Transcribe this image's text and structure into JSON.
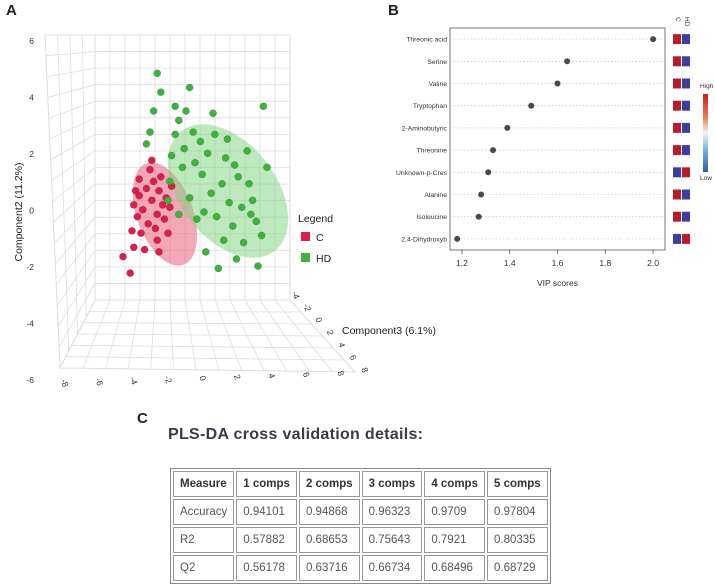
{
  "panels": {
    "a": "A",
    "b": "B",
    "c": "C"
  },
  "chart_data": [
    {
      "type": "scatter",
      "subtype": "3d-scatter",
      "axes": {
        "y_label": "Component2 (11.2%)",
        "depth_label": "Component3 (6.1%)",
        "y_ticks": [
          "6",
          "4",
          "2",
          "0",
          "-2",
          "-4",
          "-6"
        ],
        "x_ticks": [
          "-8",
          "-6",
          "-4",
          "-2",
          "0",
          "2",
          "4",
          "6",
          "8"
        ],
        "depth_ticks": [
          "-4",
          "-2",
          "0",
          "2",
          "4",
          "6",
          "8"
        ]
      },
      "legend": {
        "title": "Legend",
        "items": [
          {
            "label": "C",
            "color": "#dc1e4b"
          },
          {
            "label": "HD",
            "color": "#3cb43c"
          }
        ]
      },
      "series": [
        {
          "name": "C",
          "color": "#dc1e4b",
          "points": [
            [
              -4.6,
              0.7
            ],
            [
              -4.2,
              1.0
            ],
            [
              -3.8,
              1.3
            ],
            [
              -3.5,
              0.9
            ],
            [
              -4.9,
              0.3
            ],
            [
              -4.4,
              0.1
            ],
            [
              -3.9,
              0.5
            ],
            [
              -3.3,
              0.3
            ],
            [
              -4.7,
              -0.2
            ],
            [
              -4.1,
              -0.5
            ],
            [
              -3.6,
              -0.1
            ],
            [
              -3.1,
              0.6
            ],
            [
              -5.0,
              -0.8
            ],
            [
              -4.5,
              -0.9
            ],
            [
              -3.7,
              -0.7
            ],
            [
              -4.9,
              -1.5
            ],
            [
              -5.5,
              -1.9
            ],
            [
              -5.1,
              -2.6
            ],
            [
              -3.4,
              1.5
            ],
            [
              -4.0,
              1.8
            ],
            [
              -2.9,
              0.2
            ],
            [
              -3.6,
              -1.2
            ],
            [
              -4.3,
              -1.6
            ],
            [
              -3.2,
              -0.3
            ],
            [
              -2.8,
              1.1
            ],
            [
              -3.9,
              2.2
            ],
            [
              -4.6,
              1.4
            ],
            [
              -3.5,
              -1.7
            ],
            [
              -4.8,
              0.9
            ],
            [
              -3.0,
              -0.9
            ]
          ]
        },
        {
          "name": "HD",
          "color": "#3cb43c",
          "points": [
            [
              -3.4,
              5.1
            ],
            [
              -3.6,
              5.9
            ],
            [
              -2.6,
              4.5
            ],
            [
              -2.4,
              3.9
            ],
            [
              -2.0,
              4.3
            ],
            [
              -1.6,
              3.4
            ],
            [
              -1.2,
              3.0
            ],
            [
              -0.4,
              3.3
            ],
            [
              -2.1,
              2.7
            ],
            [
              -1.5,
              2.1
            ],
            [
              -0.8,
              2.5
            ],
            [
              0.2,
              2.3
            ],
            [
              0.7,
              2.0
            ],
            [
              -2.8,
              2.4
            ],
            [
              -2.2,
              1.9
            ],
            [
              -1.1,
              1.6
            ],
            [
              0.0,
              1.2
            ],
            [
              0.9,
              1.5
            ],
            [
              1.5,
              1.2
            ],
            [
              -1.8,
              0.6
            ],
            [
              -0.6,
              0.8
            ],
            [
              0.4,
              0.4
            ],
            [
              1.1,
              0.2
            ],
            [
              1.7,
              0.5
            ],
            [
              -1.4,
              -0.3
            ],
            [
              -0.3,
              -0.2
            ],
            [
              0.6,
              -0.6
            ],
            [
              1.9,
              -0.4
            ],
            [
              0.1,
              -1.2
            ],
            [
              1.2,
              -1.3
            ],
            [
              2.2,
              -1.0
            ],
            [
              -0.9,
              -1.7
            ],
            [
              0.8,
              -2.0
            ],
            [
              -2.4,
              -0.1
            ],
            [
              -2.9,
              1.3
            ],
            [
              2.5,
              1.9
            ],
            [
              -3.0,
              0.5
            ],
            [
              -4.0,
              3.4
            ],
            [
              -3.8,
              4.3
            ],
            [
              2.0,
              -2.3
            ],
            [
              2.3,
              4.5
            ],
            [
              -1.8,
              5.3
            ],
            [
              -4.2,
              2.9
            ],
            [
              -0.5,
              4.2
            ],
            [
              0.3,
              3.1
            ],
            [
              1.4,
              2.6
            ],
            [
              -2.6,
              3.3
            ],
            [
              -1.0,
              0.0
            ],
            [
              1.6,
              -0.1
            ],
            [
              -0.2,
              -2.4
            ]
          ]
        }
      ]
    },
    {
      "type": "scatter",
      "subtype": "dot-plot",
      "xlabel": "VIP scores",
      "xlim": [
        1.15,
        2.05
      ],
      "xticks": [
        1.2,
        1.4,
        1.6,
        1.8,
        2.0
      ],
      "xtick_labels": [
        "1.2",
        "1.4",
        "1.6",
        "1.8",
        "2.0"
      ],
      "group_labels": [
        "C",
        "HD"
      ],
      "colorbar": {
        "high": "High",
        "low": "Low"
      },
      "features": [
        "Threonic acid",
        "Serine",
        "Valine",
        "Tryptophan",
        "2-Aminobutyric",
        "Threonine",
        "Unknown-p-Cres",
        "Alanine",
        "Isoleucine",
        "2,4-Dihydroxyb"
      ],
      "values": [
        2.0,
        1.64,
        1.6,
        1.49,
        1.39,
        1.33,
        1.31,
        1.28,
        1.27,
        1.18
      ],
      "heat": [
        [
          "high",
          "low"
        ],
        [
          "high",
          "low"
        ],
        [
          "high",
          "low"
        ],
        [
          "high",
          "low"
        ],
        [
          "high",
          "low"
        ],
        [
          "high",
          "low"
        ],
        [
          "low",
          "high"
        ],
        [
          "high",
          "low"
        ],
        [
          "high",
          "low"
        ],
        [
          "low",
          "high"
        ]
      ]
    },
    {
      "type": "table",
      "title": "PLS-DA cross validation details:",
      "columns": [
        "Measure",
        "1 comps",
        "2 comps",
        "3 comps",
        "4 comps",
        "5 comps"
      ],
      "rows": [
        [
          "Accuracy",
          "0.94101",
          "0.94868",
          "0.96323",
          "0.9709",
          "0.97804"
        ],
        [
          "R2",
          "0.57882",
          "0.68653",
          "0.75643",
          "0.7921",
          "0.80335"
        ],
        [
          "Q2",
          "0.56178",
          "0.63716",
          "0.66734",
          "0.68496",
          "0.68729"
        ]
      ]
    }
  ]
}
